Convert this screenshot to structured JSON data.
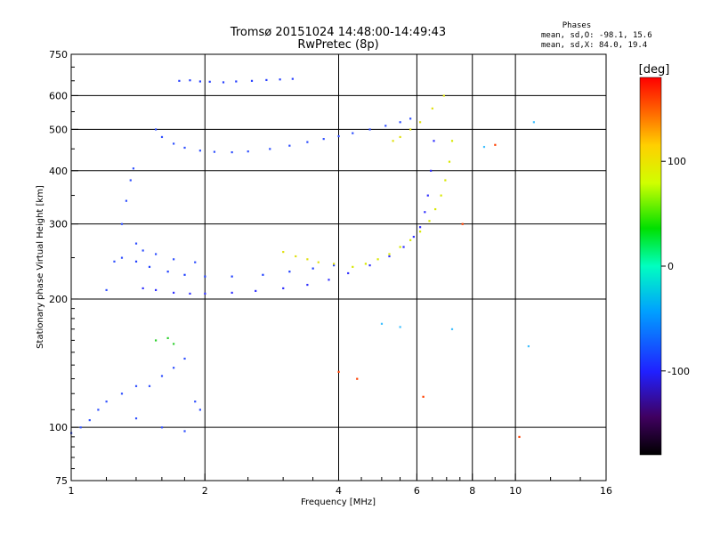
{
  "chart_data": {
    "type": "scatter",
    "title": "Tromsø 20151024 14:48:00-14:49:43",
    "subtitle": "RwPretec (8p)",
    "xlabel": "Frequency [MHz]",
    "ylabel": "Stationary phase Virtual Height [km]",
    "x_scale": "log",
    "y_scale": "log",
    "xlim": [
      1,
      16
    ],
    "ylim": [
      75,
      750
    ],
    "x_ticks": [
      1,
      2,
      4,
      6,
      8,
      10,
      16
    ],
    "y_ticks": [
      75,
      100,
      200,
      300,
      400,
      500,
      600,
      750
    ],
    "grid": true,
    "phase_stats": {
      "heading": "Phases",
      "line1": "mean, sd,O: -98.1, 15.6",
      "line2": "mean, sd,X:  84.0, 19.4"
    },
    "colorbar": {
      "label": "[deg]",
      "ticks": [
        100,
        0,
        -100
      ],
      "range": [
        -180,
        180
      ]
    },
    "series": [
      {
        "color": "#3030ff",
        "points": [
          [
            1.45,
            212
          ],
          [
            1.55,
            210
          ],
          [
            1.7,
            207
          ],
          [
            1.85,
            206
          ],
          [
            2.0,
            206
          ],
          [
            2.3,
            207
          ],
          [
            2.6,
            209
          ],
          [
            3.0,
            212
          ],
          [
            3.4,
            216
          ],
          [
            3.8,
            222
          ],
          [
            4.2,
            230
          ],
          [
            4.7,
            240
          ],
          [
            5.2,
            252
          ],
          [
            5.6,
            265
          ],
          [
            5.9,
            280
          ],
          [
            6.1,
            295
          ],
          [
            6.25,
            320
          ],
          [
            6.35,
            350
          ],
          [
            6.45,
            400
          ],
          [
            6.55,
            470
          ]
        ]
      },
      {
        "color": "#2040ff",
        "points": [
          [
            1.4,
            245
          ],
          [
            1.5,
            238
          ],
          [
            1.65,
            232
          ],
          [
            1.8,
            228
          ],
          [
            2.0,
            226
          ],
          [
            2.3,
            226
          ],
          [
            2.7,
            228
          ],
          [
            3.1,
            232
          ],
          [
            3.5,
            236
          ],
          [
            3.9,
            240
          ]
        ]
      },
      {
        "color": "#3050ff",
        "points": [
          [
            1.3,
            300
          ],
          [
            1.33,
            340
          ],
          [
            1.36,
            380
          ],
          [
            1.38,
            405
          ],
          [
            1.4,
            270
          ],
          [
            1.45,
            260
          ],
          [
            1.55,
            255
          ],
          [
            1.7,
            248
          ],
          [
            1.9,
            244
          ]
        ]
      },
      {
        "color": "#3050ff",
        "points": [
          [
            1.55,
            500
          ],
          [
            1.6,
            480
          ],
          [
            1.7,
            463
          ],
          [
            1.8,
            453
          ],
          [
            1.95,
            446
          ],
          [
            2.1,
            443
          ],
          [
            2.3,
            442
          ],
          [
            2.5,
            444
          ],
          [
            2.8,
            450
          ],
          [
            3.1,
            458
          ],
          [
            3.4,
            467
          ],
          [
            3.7,
            475
          ],
          [
            4.0,
            482
          ],
          [
            4.3,
            490
          ],
          [
            4.7,
            500
          ],
          [
            5.1,
            510
          ],
          [
            5.5,
            520
          ],
          [
            5.8,
            530
          ]
        ]
      },
      {
        "color": "#2840ff",
        "points": [
          [
            1.75,
            650
          ],
          [
            1.85,
            652
          ],
          [
            1.95,
            648
          ],
          [
            2.05,
            647
          ],
          [
            2.2,
            645
          ],
          [
            2.35,
            648
          ],
          [
            2.55,
            650
          ],
          [
            2.75,
            653
          ],
          [
            2.95,
            655
          ],
          [
            3.15,
            657
          ]
        ]
      },
      {
        "color": "#d8e800",
        "points": [
          [
            4.3,
            238
          ],
          [
            4.6,
            242
          ],
          [
            4.9,
            248
          ],
          [
            5.2,
            255
          ],
          [
            5.5,
            265
          ],
          [
            5.8,
            275
          ],
          [
            6.1,
            288
          ],
          [
            6.4,
            305
          ],
          [
            6.6,
            325
          ],
          [
            6.8,
            350
          ],
          [
            6.95,
            380
          ],
          [
            7.1,
            420
          ],
          [
            7.2,
            470
          ]
        ]
      },
      {
        "color": "#e0e010",
        "points": [
          [
            3.0,
            258
          ],
          [
            3.2,
            252
          ],
          [
            3.4,
            248
          ],
          [
            3.6,
            244
          ],
          [
            3.9,
            242
          ],
          [
            5.3,
            470
          ],
          [
            5.5,
            480
          ],
          [
            5.8,
            500
          ],
          [
            6.1,
            520
          ],
          [
            6.5,
            560
          ],
          [
            6.9,
            600
          ]
        ]
      },
      {
        "color": "#3050ff",
        "points": [
          [
            1.0,
            97
          ],
          [
            1.05,
            100
          ],
          [
            1.1,
            104
          ],
          [
            1.15,
            110
          ],
          [
            1.2,
            115
          ],
          [
            1.3,
            120
          ],
          [
            1.4,
            105
          ],
          [
            1.5,
            125
          ],
          [
            1.6,
            132
          ],
          [
            1.7,
            138
          ],
          [
            1.8,
            145
          ],
          [
            1.9,
            115
          ],
          [
            1.95,
            110
          ],
          [
            1.3,
            250
          ],
          [
            1.25,
            245
          ],
          [
            1.2,
            210
          ],
          [
            1.4,
            125
          ],
          [
            1.6,
            100
          ],
          [
            1.8,
            98
          ]
        ]
      },
      {
        "color": "#30d030",
        "points": [
          [
            1.55,
            160
          ],
          [
            1.65,
            162
          ],
          [
            1.7,
            157
          ]
        ]
      },
      {
        "color": "#ff4000",
        "points": [
          [
            4.0,
            135
          ],
          [
            4.4,
            130
          ],
          [
            6.2,
            118
          ],
          [
            7.6,
            300
          ],
          [
            10.2,
            95
          ],
          [
            9.0,
            460
          ]
        ]
      },
      {
        "color": "#40c0ff",
        "points": [
          [
            5.0,
            175
          ],
          [
            5.5,
            172
          ],
          [
            11.0,
            520
          ],
          [
            10.7,
            155
          ],
          [
            7.2,
            170
          ],
          [
            8.5,
            455
          ]
        ]
      }
    ]
  }
}
